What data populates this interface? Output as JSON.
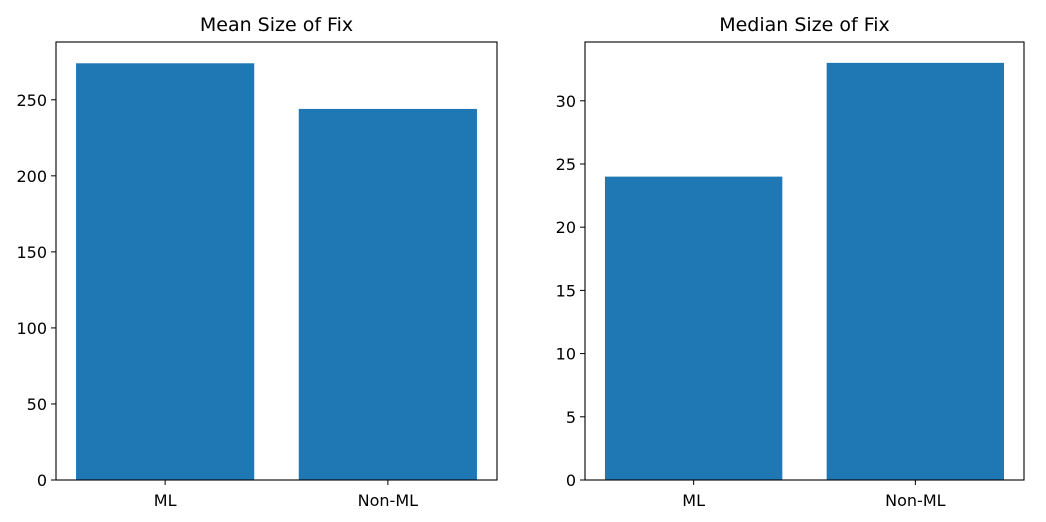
{
  "chart_data": [
    {
      "type": "bar",
      "title": "Mean Size of Fix",
      "xlabel": "",
      "ylabel": "",
      "categories": [
        "ML",
        "Non-ML"
      ],
      "values": [
        274,
        244
      ],
      "ylim": [
        0,
        288
      ],
      "yticks": [
        0,
        50,
        100,
        150,
        200,
        250
      ],
      "yticklabels": [
        "0",
        "50",
        "100",
        "150",
        "200",
        "250"
      ],
      "bar_color": "#1f77b4",
      "grid": false,
      "legend": "none"
    },
    {
      "type": "bar",
      "title": "Median Size of Fix",
      "xlabel": "",
      "ylabel": "",
      "categories": [
        "ML",
        "Non-ML"
      ],
      "values": [
        24,
        33
      ],
      "ylim": [
        0,
        34.65
      ],
      "yticks": [
        0,
        5,
        10,
        15,
        20,
        25,
        30
      ],
      "yticklabels": [
        "0",
        "5",
        "10",
        "15",
        "20",
        "25",
        "30"
      ],
      "bar_color": "#1f77b4",
      "grid": false,
      "legend": "none"
    }
  ]
}
